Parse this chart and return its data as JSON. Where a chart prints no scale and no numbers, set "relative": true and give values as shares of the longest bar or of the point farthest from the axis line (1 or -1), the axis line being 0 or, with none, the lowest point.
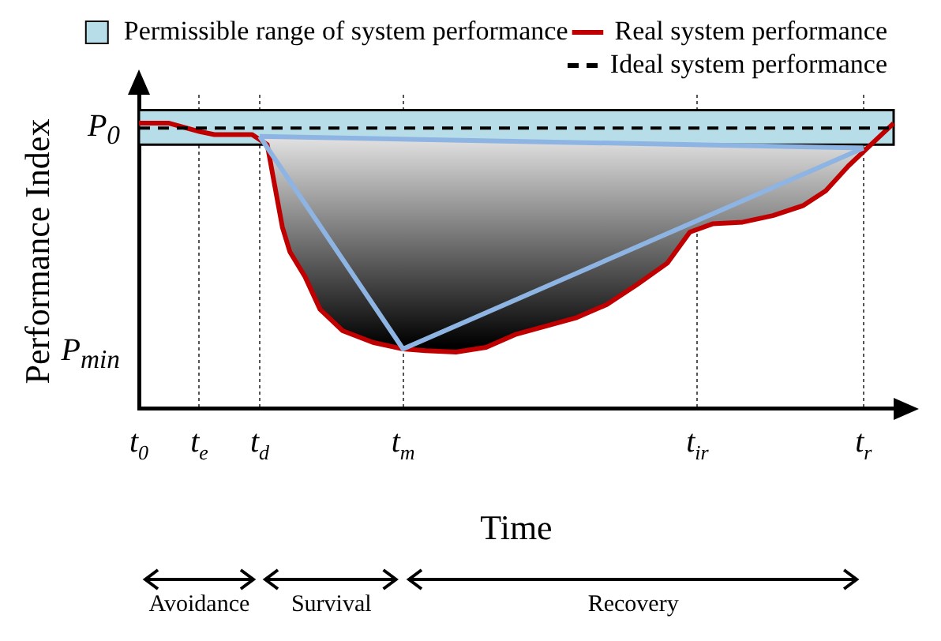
{
  "chart_data": {
    "type": "line",
    "relative": true,
    "xlabel": "Time",
    "ylabel": "Performance Index",
    "categories": [
      "t$_{0}$",
      null,
      null,
      null,
      null,
      null,
      null,
      null,
      "t$_{e}$",
      null,
      null,
      null,
      null,
      null,
      null,
      null,
      "t$_{d}$",
      null,
      null,
      null,
      null,
      null,
      null,
      null,
      null,
      null,
      null,
      null,
      null,
      null,
      null,
      null,
      null,
      null,
      null,
      "t$_{m}$",
      null,
      null,
      null,
      null,
      null,
      null,
      null,
      null,
      null,
      null,
      null,
      null,
      null,
      null,
      null,
      null,
      null,
      null,
      null,
      null,
      null,
      null,
      null,
      null,
      null,
      null,
      null,
      null,
      null,
      null,
      null,
      null,
      null,
      null,
      null,
      null,
      null,
      null,
      "t$_{ir}$",
      null,
      null,
      null,
      null,
      null,
      null,
      null,
      null,
      null,
      null,
      null,
      null,
      null,
      null,
      null,
      null,
      null,
      null,
      null,
      null,
      null,
      "t$_{r}$",
      null,
      null,
      null,
      null
    ],
    "grid": "x",
    "legend": "top right",
    "series": [
      {
        "name": "Real system performance",
        "color": "#c00000",
        "values": [
          1,
          null,
          null,
          null,
          1,
          null,
          null,
          null,
          0.971,
          null,
          0.96,
          null,
          null,
          null,
          null,
          0.96,
          null,
          0.925,
          0.78,
          0.636,
          0.549,
          null,
          0.462,
          null,
          0.347,
          null,
          null,
          0.272,
          null,
          null,
          null,
          0.231,
          null,
          null,
          null,
          0.208,
          null,
          null,
          0.202,
          null,
          null,
          null,
          0.197,
          null,
          null,
          null,
          0.214,
          null,
          null,
          null,
          0.26,
          null,
          null,
          null,
          0.289,
          null,
          null,
          null,
          0.318,
          null,
          null,
          null,
          0.364,
          null,
          null,
          null,
          0.434,
          null,
          null,
          null,
          0.509,
          null,
          null,
          0.618,
          null,
          null,
          0.647,
          null,
          null,
          null,
          0.653,
          null,
          null,
          null,
          0.676,
          null,
          null,
          null,
          0.711,
          null,
          null,
          0.763,
          null,
          null,
          0.85,
          null,
          null,
          0.925,
          null,
          null,
          1
        ]
      },
      {
        "color": "#8db4e2",
        "values": [
          null,
          null,
          null,
          null,
          null,
          null,
          null,
          null,
          null,
          null,
          null,
          null,
          null,
          null,
          null,
          null,
          0.954,
          null,
          null,
          null,
          null,
          null,
          null,
          null,
          null,
          null,
          null,
          null,
          null,
          null,
          null,
          null,
          null,
          null,
          null,
          0.208,
          null,
          null,
          null,
          null,
          null,
          null,
          null,
          null,
          null,
          null,
          null,
          null,
          null,
          null,
          null,
          null,
          null,
          null,
          null,
          null,
          null,
          null,
          null,
          null,
          null,
          null,
          null,
          null,
          null,
          null,
          null,
          null,
          null,
          null,
          null,
          null,
          null,
          null,
          null,
          null,
          null,
          null,
          null,
          null,
          null,
          null,
          null,
          null,
          null,
          null,
          null,
          null,
          null,
          null,
          null,
          null,
          null,
          null,
          null,
          null,
          0.913,
          null,
          null,
          null,
          null
        ]
      },
      {
        "color": "#8db4e2",
        "values": [
          null,
          null,
          null,
          null,
          null,
          null,
          null,
          null,
          null,
          null,
          null,
          null,
          null,
          null,
          null,
          null,
          0.954,
          null,
          null,
          null,
          null,
          null,
          null,
          null,
          null,
          null,
          null,
          null,
          null,
          null,
          null,
          null,
          null,
          null,
          null,
          null,
          null,
          null,
          null,
          null,
          null,
          null,
          null,
          null,
          null,
          null,
          null,
          null,
          null,
          null,
          null,
          null,
          null,
          null,
          null,
          null,
          null,
          null,
          null,
          null,
          null,
          null,
          null,
          null,
          null,
          null,
          null,
          null,
          null,
          null,
          null,
          null,
          null,
          null,
          null,
          null,
          null,
          null,
          null,
          null,
          null,
          null,
          null,
          null,
          null,
          null,
          null,
          null,
          null,
          null,
          null,
          null,
          null,
          null,
          null,
          null,
          0.913,
          null,
          null,
          null,
          null
        ],
        "lower": [
          null,
          null,
          null,
          null,
          null,
          null,
          null,
          null,
          null,
          null,
          null,
          null,
          null,
          null,
          null,
          null,
          0.954,
          0.925,
          0.78,
          0.636,
          0.549,
          null,
          0.462,
          null,
          0.347,
          null,
          null,
          0.272,
          null,
          null,
          null,
          0.231,
          null,
          null,
          null,
          0.208,
          null,
          null,
          0.202,
          null,
          null,
          null,
          0.197,
          null,
          null,
          null,
          0.214,
          null,
          null,
          null,
          0.26,
          null,
          null,
          null,
          0.289,
          null,
          null,
          null,
          0.318,
          null,
          null,
          null,
          0.364,
          null,
          null,
          null,
          0.434,
          null,
          null,
          null,
          0.509,
          null,
          null,
          0.618,
          null,
          null,
          0.647,
          null,
          null,
          null,
          0.653,
          null,
          null,
          null,
          0.676,
          null,
          null,
          null,
          0.711,
          null,
          null,
          0.763,
          null,
          null,
          0.85,
          null,
          0.913,
          null,
          null,
          null,
          null
        ],
        "upper": [
          null,
          null,
          null,
          null,
          null,
          null,
          null,
          null,
          null,
          null,
          null,
          null,
          null,
          null,
          null,
          null,
          0.954,
          0.953,
          0.953,
          0.952,
          0.952,
          null,
          0.951,
          null,
          0.95,
          null,
          null,
          0.948,
          null,
          null,
          null,
          0.946,
          null,
          null,
          null,
          0.944,
          null,
          null,
          0.943,
          null,
          null,
          null,
          0.941,
          null,
          null,
          null,
          0.939,
          null,
          null,
          null,
          0.937,
          null,
          null,
          null,
          0.935,
          null,
          null,
          null,
          0.932,
          null,
          null,
          null,
          0.93,
          null,
          null,
          null,
          0.928,
          null,
          null,
          null,
          0.926,
          null,
          null,
          0.925,
          null,
          null,
          0.923,
          null,
          null,
          null,
          0.921,
          null,
          null,
          null,
          0.919,
          null,
          null,
          null,
          0.917,
          null,
          null,
          0.916,
          null,
          null,
          0.914,
          null,
          0.913,
          null,
          null,
          null,
          null
        ]
      },
      {
        "name": "Ideal system performance",
        "color": "#000000",
        "line_style": "dashed",
        "values": [
          0.983,
          null,
          null,
          null,
          null,
          null,
          null,
          null,
          null,
          null,
          null,
          null,
          null,
          null,
          null,
          null,
          null,
          null,
          null,
          null,
          null,
          null,
          null,
          null,
          null,
          null,
          null,
          null,
          null,
          null,
          null,
          null,
          null,
          null,
          null,
          null,
          null,
          null,
          null,
          null,
          null,
          null,
          null,
          null,
          null,
          null,
          null,
          null,
          null,
          null,
          null,
          null,
          null,
          null,
          null,
          null,
          null,
          null,
          null,
          null,
          null,
          null,
          null,
          null,
          null,
          null,
          null,
          null,
          null,
          null,
          null,
          null,
          null,
          null,
          null,
          null,
          null,
          null,
          null,
          null,
          null,
          null,
          null,
          null,
          null,
          null,
          null,
          null,
          null,
          null,
          null,
          null,
          null,
          null,
          null,
          null,
          null,
          null,
          null,
          null,
          0.983
        ]
      }
    ],
    "bands": [
      {
        "axis": "y",
        "from": 0.925,
        "to": 1.046,
        "label": "Permissible range of system performance",
        "color": "#b7dde8"
      }
    ],
    "annotations": [
      "P$_{0}$",
      "P$_{min}$",
      "Avoidance",
      "Survival",
      "Recovery"
    ]
  }
}
